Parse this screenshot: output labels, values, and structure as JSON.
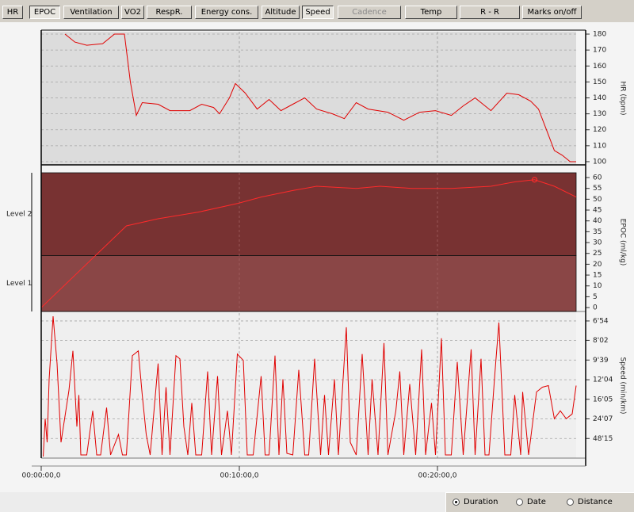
{
  "toolbar": {
    "buttons": [
      "HR",
      "EPOC",
      "Ventilation",
      "VO2",
      "RespR.",
      "Energy cons.",
      "Altitude",
      "Speed",
      "Cadence",
      "Temp",
      "R - R",
      "Marks on/off"
    ]
  },
  "chart_data": [
    {
      "type": "line",
      "ylabel": "HR (bpm)",
      "color": "#e00000",
      "grid": true,
      "x": [
        1.2,
        1.7,
        2.3,
        3.1,
        3.7,
        4.2,
        4.5,
        4.8,
        5.1,
        5.9,
        6.5,
        7.5,
        8.1,
        8.7,
        9.0,
        9.5,
        9.8,
        10.3,
        10.9,
        11.5,
        12.1,
        12.7,
        13.3,
        13.9,
        14.7,
        15.3,
        15.9,
        16.5,
        17.5,
        18.3,
        19.1,
        19.9,
        20.7,
        21.3,
        21.9,
        22.7,
        23.5,
        24.1,
        24.7,
        25.1,
        25.5,
        25.9,
        26.3,
        26.7,
        27.0
      ],
      "values": [
        180,
        175,
        173,
        174,
        180,
        180,
        150,
        129,
        137,
        136,
        132,
        132,
        136,
        134,
        130,
        140,
        149,
        143,
        133,
        139,
        132,
        136,
        140,
        133,
        130,
        127,
        137,
        133,
        131,
        126,
        131,
        132,
        129,
        135,
        140,
        132,
        143,
        142,
        138,
        133,
        120,
        107,
        104,
        100,
        100
      ],
      "xlim": [
        0,
        27
      ],
      "ylim": [
        98,
        181.5
      ],
      "yticks": [
        100,
        110,
        120,
        130,
        140,
        150,
        160,
        170,
        180
      ]
    },
    {
      "type": "line",
      "ylabel": "EPOC (ml/kg)",
      "color": "#ff2a2a",
      "grid": true,
      "peak_marker": true,
      "zones": [
        {
          "label": "Level 1",
          "from": -1.8,
          "to": 24,
          "color": "#8a4646"
        },
        {
          "label": "Level 2",
          "from": 24,
          "to": 62.2,
          "color": "#783232"
        }
      ],
      "x": [
        0,
        4.3,
        5.9,
        7.9,
        9.9,
        11.1,
        12.7,
        13.9,
        15.9,
        17.1,
        18.7,
        20.7,
        22.7,
        23.9,
        24.9,
        25.9,
        27.0
      ],
      "values": [
        0,
        37.7,
        41,
        44,
        48,
        51,
        54,
        56,
        55,
        56,
        55,
        55,
        56,
        58,
        59,
        56,
        51
      ],
      "xlim": [
        0,
        27
      ],
      "ylim": [
        -1.8,
        62.2
      ],
      "yticks": [
        0,
        5,
        10,
        15,
        20,
        25,
        30,
        35,
        40,
        45,
        50,
        55,
        60
      ]
    },
    {
      "type": "line",
      "ylabel": "Speed (min/km)",
      "color": "#e00000",
      "grid": true,
      "x": [
        0.1,
        0.2,
        0.3,
        0.4,
        0.6,
        0.8,
        1.0,
        1.4,
        1.6,
        1.8,
        1.9,
        2.0,
        2.3,
        2.6,
        2.8,
        3.0,
        3.3,
        3.5,
        3.9,
        4.1,
        4.3,
        4.6,
        4.9,
        5.1,
        5.3,
        5.5,
        5.9,
        6.1,
        6.3,
        6.5,
        6.8,
        7.0,
        7.2,
        7.4,
        7.6,
        7.8,
        8.1,
        8.4,
        8.6,
        8.9,
        9.1,
        9.4,
        9.6,
        9.9,
        10.2,
        10.4,
        10.7,
        11.1,
        11.3,
        11.5,
        11.8,
        12.0,
        12.2,
        12.4,
        12.7,
        13.0,
        13.3,
        13.5,
        13.8,
        14.1,
        14.3,
        14.5,
        14.8,
        15.0,
        15.4,
        15.6,
        15.9,
        16.2,
        16.5,
        16.7,
        17.0,
        17.3,
        17.5,
        17.9,
        18.1,
        18.3,
        18.6,
        18.9,
        19.2,
        19.4,
        19.7,
        19.9,
        20.2,
        20.4,
        20.7,
        21.0,
        21.3,
        21.7,
        21.9,
        22.2,
        22.4,
        22.6,
        22.9,
        23.1,
        23.4,
        23.7,
        23.9,
        24.2,
        24.3,
        24.6,
        25.0,
        25.3,
        25.6,
        25.9,
        26.2,
        26.5,
        26.8,
        27.0
      ],
      "values": [
        0.1,
        2.5,
        1,
        5,
        9.0,
        6,
        1,
        4.3,
        6.8,
        2,
        4,
        0.2,
        0.2,
        3,
        0.2,
        0.2,
        3.2,
        0.2,
        1.5,
        0.2,
        0.2,
        6.5,
        6.8,
        4,
        1.5,
        0.2,
        6.0,
        0.2,
        4.5,
        0.2,
        6.5,
        6.3,
        2,
        0.2,
        3.5,
        0.2,
        0.2,
        5.5,
        0.2,
        5.2,
        0.2,
        3,
        0.2,
        6.6,
        6.2,
        0.2,
        0.2,
        5.2,
        0.2,
        0.2,
        6.5,
        0.2,
        5,
        0.3,
        0.2,
        5.6,
        0.2,
        0.2,
        6.3,
        0.2,
        4,
        0.2,
        5,
        0.2,
        8.3,
        1,
        0.2,
        6.6,
        0.2,
        5,
        0.2,
        7.3,
        0.2,
        3,
        5.5,
        0.2,
        4.7,
        0.2,
        6.9,
        0.2,
        3.5,
        0.2,
        7.6,
        0.2,
        0.2,
        6.1,
        0.2,
        6.9,
        0.2,
        6.3,
        0.2,
        0.2,
        5.4,
        8.6,
        0.2,
        0.2,
        4,
        0.2,
        4.2,
        0.2,
        4.2,
        4.5,
        4.6,
        2.5,
        3,
        2.5,
        2.8,
        4.6
      ],
      "xlim": [
        0,
        27
      ],
      "ylim": [
        0,
        9.2
      ],
      "yticks": [
        {
          "value": 8.7,
          "label": "6'54"
        },
        {
          "value": 7.47,
          "label": "8'02"
        },
        {
          "value": 6.22,
          "label": "9'39"
        },
        {
          "value": 4.97,
          "label": "12'04"
        },
        {
          "value": 3.73,
          "label": "16'05"
        },
        {
          "value": 2.488,
          "label": "24'07"
        },
        {
          "value": 1.2435,
          "label": "48'15"
        }
      ],
      "xticks": [
        {
          "value": 0,
          "label": "00:00:00,0"
        },
        {
          "value": 10,
          "label": "00:10:00,0"
        },
        {
          "value": 20,
          "label": "00:20:00,0"
        }
      ]
    }
  ],
  "footer": {
    "options": [
      "Duration",
      "Date",
      "Distance"
    ]
  }
}
